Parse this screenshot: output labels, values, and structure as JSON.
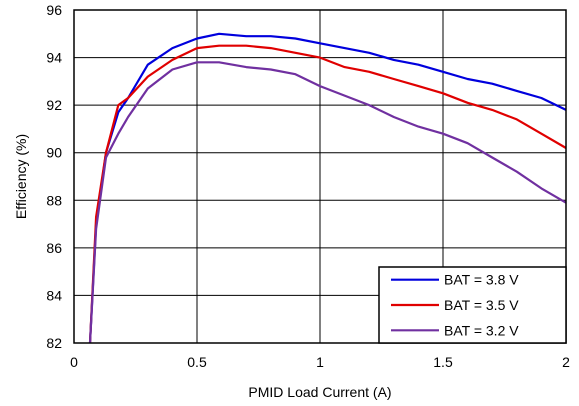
{
  "chart_data": {
    "type": "line",
    "xlabel": "PMID Load Current (A)",
    "ylabel": "Efficiency (%)",
    "xlim": [
      0,
      2
    ],
    "ylim": [
      82,
      96
    ],
    "xticks": [
      0,
      0.5,
      1,
      1.5,
      2
    ],
    "xtick_labels": [
      "0",
      "0.5",
      "1",
      "1.5",
      "2"
    ],
    "yticks": [
      82,
      84,
      86,
      88,
      90,
      92,
      94,
      96
    ],
    "ytick_labels": [
      "82",
      "84",
      "86",
      "88",
      "90",
      "92",
      "94",
      "96"
    ],
    "grid": true,
    "legend_position": "bottom-right",
    "series": [
      {
        "name": "BAT = 3.8 V",
        "color": "#0000dd",
        "points": [
          [
            0.065,
            82.0
          ],
          [
            0.09,
            87.0
          ],
          [
            0.13,
            90.0
          ],
          [
            0.18,
            91.7
          ],
          [
            0.22,
            92.3
          ],
          [
            0.3,
            93.7
          ],
          [
            0.4,
            94.4
          ],
          [
            0.5,
            94.8
          ],
          [
            0.59,
            95.0
          ],
          [
            0.7,
            94.9
          ],
          [
            0.8,
            94.9
          ],
          [
            0.9,
            94.8
          ],
          [
            1.0,
            94.6
          ],
          [
            1.1,
            94.4
          ],
          [
            1.2,
            94.2
          ],
          [
            1.3,
            93.9
          ],
          [
            1.4,
            93.7
          ],
          [
            1.5,
            93.4
          ],
          [
            1.6,
            93.1
          ],
          [
            1.7,
            92.9
          ],
          [
            1.8,
            92.6
          ],
          [
            1.9,
            92.3
          ],
          [
            2.0,
            91.8
          ]
        ]
      },
      {
        "name": "BAT = 3.5 V",
        "color": "#e00000",
        "points": [
          [
            0.065,
            82.0
          ],
          [
            0.09,
            87.3
          ],
          [
            0.13,
            90.0
          ],
          [
            0.18,
            92.0
          ],
          [
            0.22,
            92.3
          ],
          [
            0.3,
            93.2
          ],
          [
            0.4,
            93.9
          ],
          [
            0.5,
            94.4
          ],
          [
            0.59,
            94.5
          ],
          [
            0.7,
            94.5
          ],
          [
            0.8,
            94.4
          ],
          [
            0.9,
            94.2
          ],
          [
            1.0,
            94.0
          ],
          [
            1.1,
            93.6
          ],
          [
            1.2,
            93.4
          ],
          [
            1.3,
            93.1
          ],
          [
            1.4,
            92.8
          ],
          [
            1.5,
            92.5
          ],
          [
            1.6,
            92.1
          ],
          [
            1.7,
            91.8
          ],
          [
            1.8,
            91.4
          ],
          [
            1.9,
            90.8
          ],
          [
            2.0,
            90.2
          ]
        ]
      },
      {
        "name": "BAT = 3.2 V",
        "color": "#7030a0",
        "points": [
          [
            0.065,
            82.0
          ],
          [
            0.09,
            86.8
          ],
          [
            0.13,
            89.8
          ],
          [
            0.18,
            90.8
          ],
          [
            0.22,
            91.5
          ],
          [
            0.3,
            92.7
          ],
          [
            0.4,
            93.5
          ],
          [
            0.5,
            93.8
          ],
          [
            0.59,
            93.8
          ],
          [
            0.7,
            93.6
          ],
          [
            0.8,
            93.5
          ],
          [
            0.9,
            93.3
          ],
          [
            1.0,
            92.8
          ],
          [
            1.1,
            92.4
          ],
          [
            1.2,
            92.0
          ],
          [
            1.3,
            91.5
          ],
          [
            1.4,
            91.1
          ],
          [
            1.5,
            90.8
          ],
          [
            1.6,
            90.4
          ],
          [
            1.7,
            89.8
          ],
          [
            1.8,
            89.2
          ],
          [
            1.9,
            88.5
          ],
          [
            2.0,
            87.9
          ]
        ]
      }
    ]
  }
}
